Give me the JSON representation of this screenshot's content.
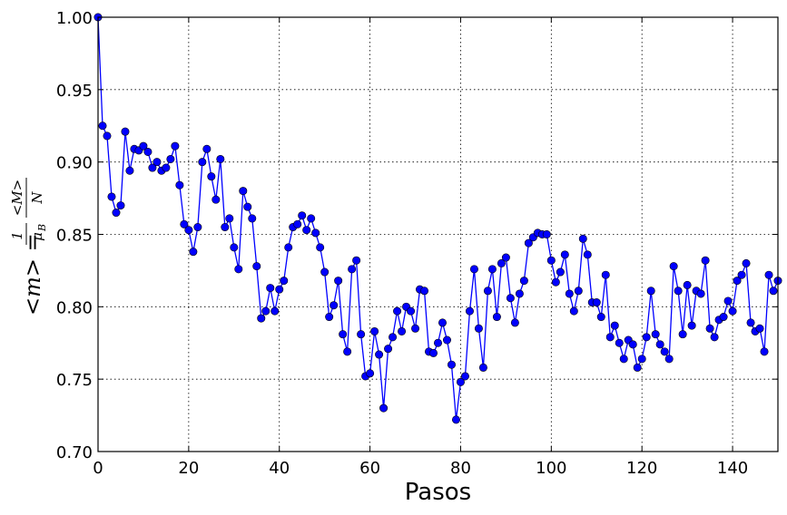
{
  "chart_data": {
    "type": "line",
    "xlabel": "Pasos",
    "ylabel": {
      "lhs": "<m> = ",
      "frac1_num": "1",
      "frac1_den": "μ",
      "frac1_den_sub": "B",
      "frac2_num": "<M>",
      "frac2_den": "N"
    },
    "xlim": [
      0,
      150
    ],
    "ylim": [
      0.7,
      1.0
    ],
    "xticks": [
      0,
      20,
      40,
      60,
      80,
      100,
      120,
      140
    ],
    "yticks": [
      "0.70",
      "0.75",
      "0.80",
      "0.85",
      "0.90",
      "0.95",
      "1.00"
    ],
    "grid": true,
    "line_color": "#0000ff",
    "marker_color": "#0000ff",
    "series": [
      {
        "x": [
          0,
          1,
          2,
          3,
          4,
          5,
          6,
          7,
          8,
          9,
          10,
          11,
          12,
          13,
          14,
          15,
          16,
          17,
          18,
          19,
          20,
          21,
          22,
          23,
          24,
          25,
          26,
          27,
          28,
          29,
          30,
          31,
          32,
          33,
          34,
          35,
          36,
          37,
          38,
          39,
          40,
          41,
          42,
          43,
          44,
          45,
          46,
          47,
          48,
          49,
          50,
          51,
          52,
          53,
          54,
          55,
          56,
          57,
          58,
          59,
          60,
          61,
          62,
          63,
          64,
          65,
          66,
          67,
          68,
          69,
          70,
          71,
          72,
          73,
          74,
          75,
          76,
          77,
          78,
          79,
          80,
          81,
          82,
          83,
          84,
          85,
          86,
          87,
          88,
          89,
          90,
          91,
          92,
          93,
          94,
          95,
          96,
          97,
          98,
          99,
          100,
          101,
          102,
          103,
          104,
          105,
          106,
          107,
          108,
          109,
          110,
          111,
          112,
          113,
          114,
          115,
          116,
          117,
          118,
          119,
          120,
          121,
          122,
          123,
          124,
          125,
          126,
          127,
          128,
          129,
          130,
          131,
          132,
          133,
          134,
          135,
          136,
          137,
          138,
          139,
          140,
          141,
          142,
          143,
          144,
          145,
          146,
          147,
          148,
          149,
          150
        ],
        "y": [
          1.0,
          0.925,
          0.918,
          0.876,
          0.865,
          0.87,
          0.921,
          0.894,
          0.909,
          0.908,
          0.911,
          0.907,
          0.896,
          0.9,
          0.894,
          0.896,
          0.902,
          0.911,
          0.884,
          0.857,
          0.853,
          0.838,
          0.855,
          0.9,
          0.909,
          0.89,
          0.874,
          0.902,
          0.855,
          0.861,
          0.841,
          0.826,
          0.88,
          0.869,
          0.861,
          0.828,
          0.792,
          0.797,
          0.813,
          0.797,
          0.812,
          0.818,
          0.841,
          0.855,
          0.857,
          0.863,
          0.853,
          0.861,
          0.851,
          0.841,
          0.824,
          0.793,
          0.801,
          0.818,
          0.781,
          0.769,
          0.826,
          0.832,
          0.781,
          0.752,
          0.754,
          0.783,
          0.767,
          0.73,
          0.771,
          0.779,
          0.797,
          0.783,
          0.8,
          0.797,
          0.785,
          0.812,
          0.811,
          0.769,
          0.768,
          0.775,
          0.789,
          0.777,
          0.76,
          0.722,
          0.748,
          0.752,
          0.797,
          0.826,
          0.785,
          0.758,
          0.811,
          0.826,
          0.793,
          0.83,
          0.834,
          0.806,
          0.789,
          0.809,
          0.818,
          0.844,
          0.848,
          0.851,
          0.85,
          0.85,
          0.832,
          0.817,
          0.824,
          0.836,
          0.809,
          0.797,
          0.811,
          0.847,
          0.836,
          0.803,
          0.803,
          0.793,
          0.822,
          0.779,
          0.787,
          0.775,
          0.764,
          0.777,
          0.774,
          0.758,
          0.764,
          0.779,
          0.811,
          0.781,
          0.774,
          0.769,
          0.764,
          0.828,
          0.811,
          0.781,
          0.815,
          0.787,
          0.811,
          0.809,
          0.832,
          0.785,
          0.779,
          0.791,
          0.793,
          0.804,
          0.797,
          0.818,
          0.822,
          0.83,
          0.789,
          0.783,
          0.785,
          0.769,
          0.822,
          0.811,
          0.818
        ]
      }
    ]
  }
}
